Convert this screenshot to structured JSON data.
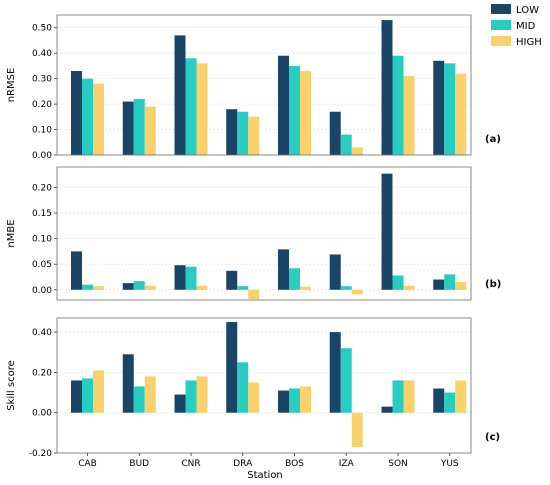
{
  "chart_data": {
    "type": "bar",
    "categories": [
      "CAB",
      "BUD",
      "CNR",
      "DRA",
      "BOS",
      "IZA",
      "SON",
      "YUS"
    ],
    "xlabel": "Station",
    "legend": {
      "placement": "top-right",
      "entries": [
        "LOW",
        "MID",
        "HIGH"
      ]
    },
    "colors": {
      "LOW": "#1b4566",
      "MID": "#26cdc0",
      "HIGH": "#f8d06c"
    },
    "grid": "horizontal",
    "panels": [
      {
        "id": "a",
        "tag": "(a)",
        "ylabel": "nRMSE",
        "ylim": [
          0,
          0.55
        ],
        "yticks": [
          0.0,
          0.1,
          0.2,
          0.3,
          0.4,
          0.5
        ],
        "yticklabels": [
          "0.00",
          "0.10",
          "0.20",
          "0.30",
          "0.40",
          "0.50"
        ],
        "series": [
          {
            "name": "LOW",
            "values": [
              0.33,
              0.21,
              0.47,
              0.18,
              0.39,
              0.17,
              0.53,
              0.37
            ]
          },
          {
            "name": "MID",
            "values": [
              0.3,
              0.22,
              0.38,
              0.17,
              0.35,
              0.08,
              0.39,
              0.36
            ]
          },
          {
            "name": "HIGH",
            "values": [
              0.28,
              0.19,
              0.36,
              0.15,
              0.33,
              0.03,
              0.31,
              0.32
            ]
          }
        ]
      },
      {
        "id": "b",
        "tag": "(b)",
        "ylabel": "nMBE",
        "ylim": [
          -0.02,
          0.24
        ],
        "yticks": [
          0.0,
          0.05,
          0.1,
          0.15,
          0.2
        ],
        "yticklabels": [
          "0.00",
          "0.05",
          "0.10",
          "0.15",
          "0.20"
        ],
        "series": [
          {
            "name": "LOW",
            "values": [
              0.075,
              0.013,
              0.048,
              0.037,
              0.079,
              0.069,
              0.227,
              0.02
            ]
          },
          {
            "name": "MID",
            "values": [
              0.01,
              0.017,
              0.045,
              0.007,
              0.042,
              0.007,
              0.028,
              0.03
            ]
          },
          {
            "name": "HIGH",
            "values": [
              0.007,
              0.008,
              0.008,
              -0.018,
              0.006,
              -0.009,
              0.008,
              0.015
            ]
          }
        ]
      },
      {
        "id": "c",
        "tag": "(c)",
        "ylabel": "Skill score",
        "ylim": [
          -0.2,
          0.47
        ],
        "yticks": [
          -0.2,
          0.0,
          0.2,
          0.4
        ],
        "yticklabels": [
          "-0.20",
          "0.00",
          "0.20",
          "0.40"
        ],
        "series": [
          {
            "name": "LOW",
            "values": [
              0.16,
              0.29,
              0.09,
              0.45,
              0.11,
              0.4,
              0.03,
              0.12
            ]
          },
          {
            "name": "MID",
            "values": [
              0.17,
              0.13,
              0.16,
              0.25,
              0.12,
              0.32,
              0.16,
              0.1
            ]
          },
          {
            "name": "HIGH",
            "values": [
              0.21,
              0.18,
              0.18,
              0.15,
              0.13,
              -0.17,
              0.16,
              0.16
            ]
          }
        ]
      }
    ]
  }
}
